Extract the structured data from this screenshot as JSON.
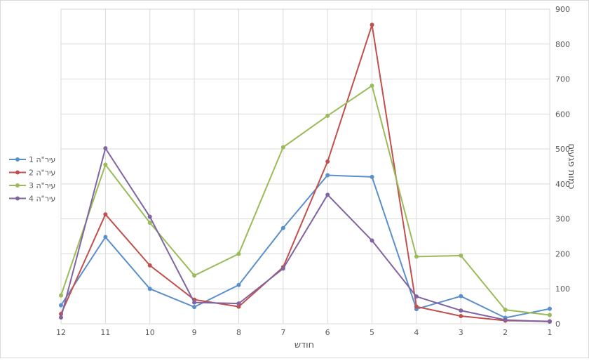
{
  "chart_data": {
    "type": "line",
    "xlabel": "חודש",
    "ylabel": "כמות פגעים",
    "ylim": [
      0,
      900
    ],
    "yticks": [
      0,
      100,
      200,
      300,
      400,
      500,
      600,
      700,
      800,
      900
    ],
    "categories": [
      "12",
      "11",
      "10",
      "9",
      "8",
      "7",
      "6",
      "5",
      "4",
      "3",
      "2",
      "1"
    ],
    "x_direction": "reversed",
    "y_axis_side": "right",
    "grid": true,
    "legend_position": "left",
    "series": [
      {
        "name": "עיר\"ה 1",
        "color": "#5B8FCC",
        "values": [
          53,
          248,
          100,
          48,
          111,
          274,
          425,
          420,
          42,
          79,
          17,
          43
        ]
      },
      {
        "name": "עיר\"ה 2",
        "color": "#C0504D",
        "values": [
          28,
          313,
          167,
          69,
          49,
          162,
          464,
          855,
          49,
          22,
          9,
          7
        ]
      },
      {
        "name": "עיר\"ה 3",
        "color": "#9BBB59",
        "values": [
          81,
          455,
          289,
          138,
          200,
          505,
          595,
          681,
          192,
          195,
          40,
          25
        ]
      },
      {
        "name": "עיר\"ה 4",
        "color": "#8064A2",
        "values": [
          18,
          502,
          306,
          61,
          58,
          158,
          369,
          238,
          78,
          38,
          11,
          6
        ]
      }
    ]
  }
}
